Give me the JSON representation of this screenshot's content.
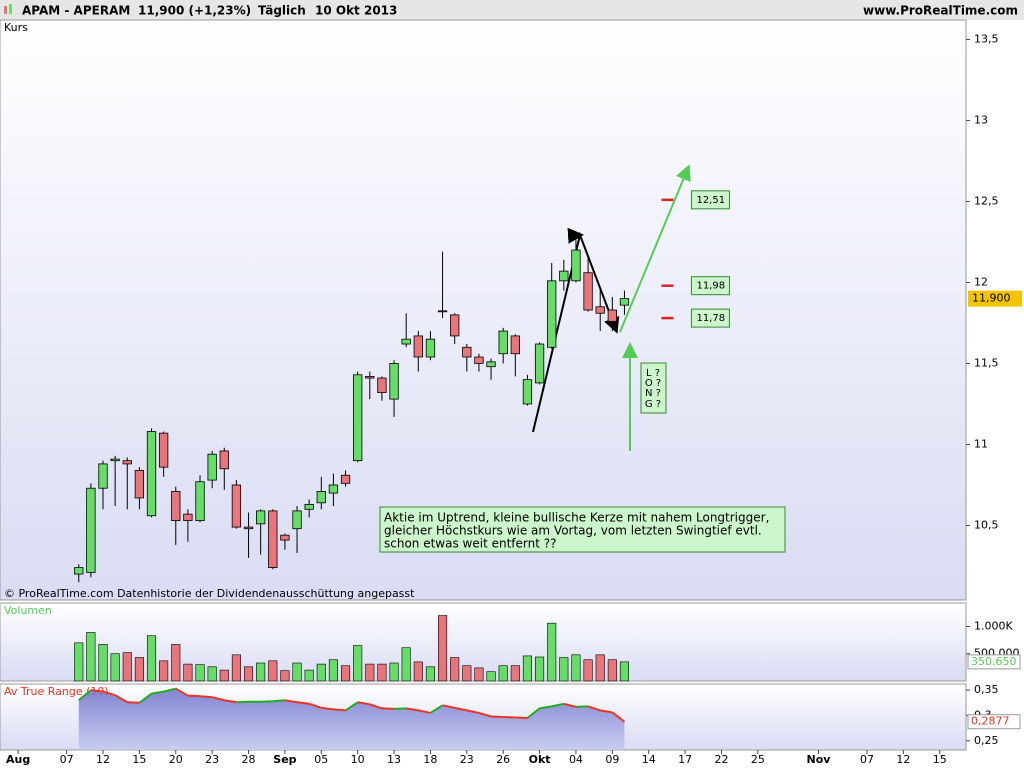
{
  "header": {
    "symbol": "APAM - APERAM",
    "quote": "11,900 (+1,23%)",
    "period": "Täglich",
    "date": "10 Okt 2013",
    "site": "www.ProRealTime.com"
  },
  "chart_data": [
    {
      "type": "candlestick",
      "label": "Kurs",
      "x": [
        "2013-08-08",
        "2013-08-09",
        "2013-08-12",
        "2013-08-13",
        "2013-08-14",
        "2013-08-15",
        "2013-08-16",
        "2013-08-19",
        "2013-08-20",
        "2013-08-21",
        "2013-08-22",
        "2013-08-23",
        "2013-08-26",
        "2013-08-27",
        "2013-08-28",
        "2013-08-29",
        "2013-08-30",
        "2013-09-02",
        "2013-09-03",
        "2013-09-04",
        "2013-09-05",
        "2013-09-06",
        "2013-09-09",
        "2013-09-10",
        "2013-09-11",
        "2013-09-12",
        "2013-09-13",
        "2013-09-16",
        "2013-09-17",
        "2013-09-18",
        "2013-09-19",
        "2013-09-20",
        "2013-09-23",
        "2013-09-24",
        "2013-09-25",
        "2013-09-26",
        "2013-09-27",
        "2013-09-30",
        "2013-10-01",
        "2013-10-02",
        "2013-10-03",
        "2013-10-04",
        "2013-10-07",
        "2013-10-08",
        "2013-10-09",
        "2013-10-10"
      ],
      "open": [
        10.2,
        10.21,
        10.73,
        10.9,
        10.9,
        10.84,
        10.56,
        11.07,
        10.71,
        10.57,
        10.53,
        10.78,
        10.96,
        10.75,
        10.49,
        10.51,
        10.59,
        10.44,
        10.48,
        10.6,
        10.64,
        10.7,
        10.81,
        10.9,
        11.42,
        11.41,
        11.28,
        11.62,
        11.67,
        11.54,
        11.825,
        11.8,
        11.6,
        11.54,
        11.48,
        11.56,
        11.67,
        11.25,
        11.38,
        11.6,
        12.01,
        12.01,
        12.06,
        11.85,
        11.83,
        11.86
      ],
      "high": [
        10.26,
        10.76,
        10.9,
        10.93,
        10.92,
        10.86,
        11.1,
        11.08,
        10.74,
        10.6,
        10.81,
        10.96,
        10.98,
        10.78,
        10.58,
        10.6,
        10.6,
        10.45,
        10.62,
        10.66,
        10.8,
        10.82,
        10.84,
        11.45,
        11.45,
        11.42,
        11.52,
        11.81,
        11.7,
        11.7,
        12.19,
        11.81,
        11.62,
        11.56,
        11.53,
        11.72,
        11.68,
        11.43,
        11.63,
        12.12,
        12.14,
        12.3,
        12.17,
        11.96,
        11.91,
        11.95
      ],
      "low": [
        10.15,
        10.18,
        10.6,
        10.62,
        10.6,
        10.6,
        10.55,
        10.8,
        10.38,
        10.4,
        10.52,
        10.73,
        10.72,
        10.48,
        10.3,
        10.32,
        10.23,
        10.35,
        10.33,
        10.55,
        10.6,
        10.62,
        10.74,
        10.89,
        11.28,
        11.27,
        11.17,
        11.6,
        11.45,
        11.52,
        11.78,
        11.62,
        11.45,
        11.45,
        11.4,
        11.5,
        11.42,
        11.24,
        11.37,
        11.59,
        11.95,
        12.0,
        11.82,
        11.7,
        11.7,
        11.8
      ],
      "close": [
        10.24,
        10.73,
        10.88,
        10.91,
        10.88,
        10.67,
        11.08,
        10.86,
        10.53,
        10.53,
        10.77,
        10.94,
        10.85,
        10.49,
        10.48,
        10.59,
        10.24,
        10.41,
        10.59,
        10.63,
        10.71,
        10.75,
        10.76,
        11.43,
        11.41,
        11.32,
        11.5,
        11.65,
        11.54,
        11.65,
        11.82,
        11.67,
        11.54,
        11.5,
        11.51,
        11.7,
        11.56,
        11.4,
        11.62,
        12.01,
        12.07,
        12.2,
        11.83,
        11.81,
        11.76,
        11.9
      ],
      "last_label": "11,900",
      "up_color": "#66dd66",
      "down_color": "#e8757a",
      "xlim": [
        "2013-07-31",
        "2013-11-19"
      ],
      "xticks": [
        {
          "value": "2013-08-01",
          "label": "Aug"
        },
        {
          "value": "2013-08-07",
          "label": "07"
        },
        {
          "value": "2013-08-12",
          "label": "12"
        },
        {
          "value": "2013-08-15",
          "label": "15"
        },
        {
          "value": "2013-08-20",
          "label": "20"
        },
        {
          "value": "2013-08-23",
          "label": "23"
        },
        {
          "value": "2013-08-28",
          "label": "28"
        },
        {
          "value": "2013-09-02",
          "label": "Sep"
        },
        {
          "value": "2013-09-05",
          "label": "05"
        },
        {
          "value": "2013-09-10",
          "label": "10"
        },
        {
          "value": "2013-09-13",
          "label": "13"
        },
        {
          "value": "2013-09-18",
          "label": "18"
        },
        {
          "value": "2013-09-23",
          "label": "23"
        },
        {
          "value": "2013-09-26",
          "label": "26"
        },
        {
          "value": "2013-10-01",
          "label": "Okt"
        },
        {
          "value": "2013-10-04",
          "label": "04"
        },
        {
          "value": "2013-10-09",
          "label": "09"
        },
        {
          "value": "2013-10-14",
          "label": "14"
        },
        {
          "value": "2013-10-17",
          "label": "17"
        },
        {
          "value": "2013-10-22",
          "label": "22"
        },
        {
          "value": "2013-10-25",
          "label": "25"
        },
        {
          "value": "2013-11-01",
          "label": "Nov"
        },
        {
          "value": "2013-11-07",
          "label": "07"
        },
        {
          "value": "2013-11-12",
          "label": "12"
        },
        {
          "value": "2013-11-15",
          "label": "15"
        }
      ],
      "ylim": [
        10.04,
        13.62
      ],
      "yticks": [
        {
          "value": 13.5,
          "label": "13,5"
        },
        13,
        {
          "value": 12.5,
          "label": "12,5"
        },
        12,
        {
          "value": 11.5,
          "label": "11,5"
        },
        11,
        {
          "value": 10.5,
          "label": "10,5"
        }
      ],
      "levels": [
        {
          "value": 12.51,
          "label": "12,51"
        },
        {
          "value": 11.98,
          "label": "11,98"
        },
        {
          "value": 11.78,
          "label": "11,78"
        }
      ],
      "note": [
        "Aktie im Uptrend, kleine bullische Kerze mit nahem Longtrigger,",
        "gleicher Höchstkurs wie am Vortag, vom letzten Swingtief evtl.",
        "schon etwas weit entfernt ??"
      ],
      "signal": [
        "L ?",
        "O ?",
        "N ?",
        "G ?"
      ],
      "footer": "© ProRealTime.com Datenhistorie der Dividendenausschüttung angepasst"
    },
    {
      "type": "bar",
      "label": "Volumen",
      "values": [
        700000,
        890000,
        670000,
        500000,
        520000,
        430000,
        830000,
        370000,
        670000,
        310000,
        300000,
        260000,
        200000,
        480000,
        260000,
        330000,
        370000,
        190000,
        330000,
        200000,
        310000,
        390000,
        280000,
        650000,
        310000,
        310000,
        330000,
        610000,
        350000,
        260000,
        1200000,
        430000,
        280000,
        240000,
        170000,
        280000,
        280000,
        460000,
        440000,
        1060000,
        430000,
        480000,
        390000,
        480000,
        390000,
        350650
      ],
      "last_label": "350.650",
      "ylim": [
        0,
        1430000
      ],
      "yticks": [
        {
          "value": 1000000,
          "label": "1.000K"
        },
        {
          "value": 500000,
          "label": "500.000"
        }
      ]
    },
    {
      "type": "line",
      "label": "Av True Range (10)",
      "values": [
        0.33,
        0.35,
        0.347,
        0.34,
        0.326,
        0.325,
        0.343,
        0.347,
        0.353,
        0.339,
        0.338,
        0.336,
        0.33,
        0.326,
        0.327,
        0.327,
        0.328,
        0.33,
        0.326,
        0.323,
        0.315,
        0.312,
        0.31,
        0.326,
        0.322,
        0.314,
        0.313,
        0.314,
        0.31,
        0.305,
        0.32,
        0.315,
        0.31,
        0.305,
        0.298,
        0.297,
        0.296,
        0.295,
        0.314,
        0.318,
        0.323,
        0.317,
        0.318,
        0.31,
        0.306,
        0.2877
      ],
      "last_label": "0,2877",
      "up_color": "#22aa22",
      "down_color": "#ee3322",
      "ylim": [
        0.232,
        0.362
      ],
      "yticks": [
        {
          "value": 0.35,
          "label": "0,35"
        },
        {
          "value": 0.3,
          "label": "0,3"
        },
        {
          "value": 0.25,
          "label": "0,25"
        }
      ]
    }
  ]
}
